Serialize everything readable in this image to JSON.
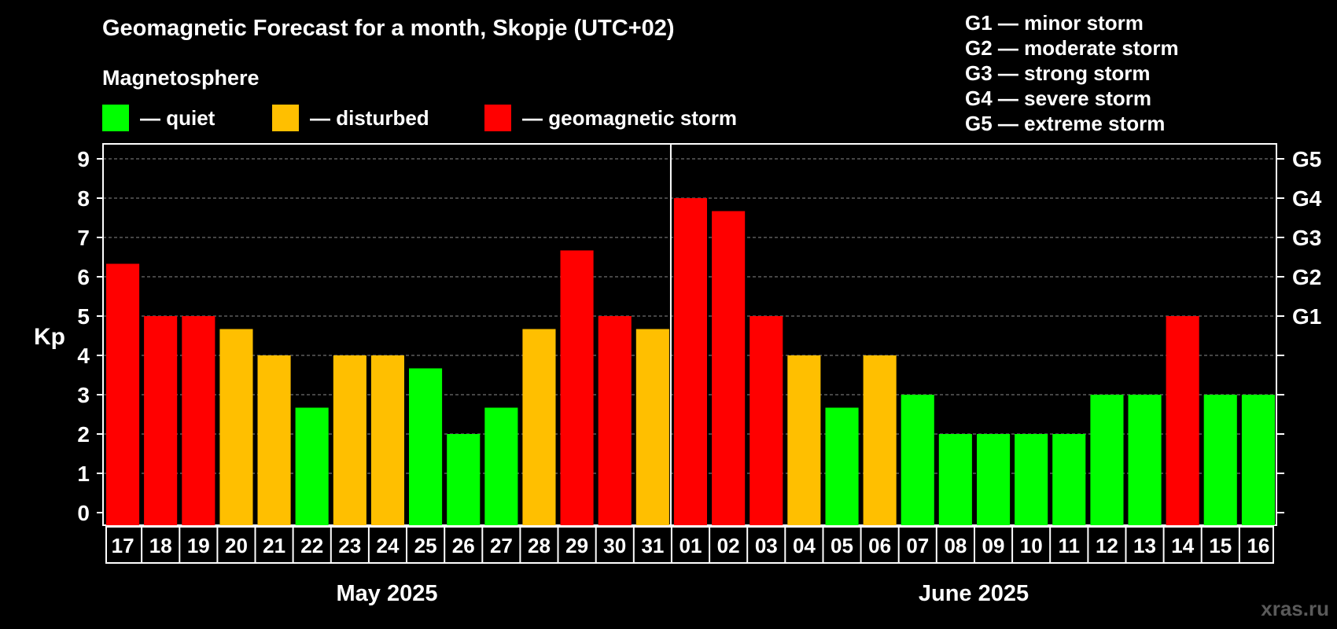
{
  "chart_data": {
    "type": "bar",
    "title": "Geomagnetic Forecast for a month, Skopje (UTC+02)",
    "subtitle": "Magnetosphere",
    "ylabel": "Kp",
    "ylim": [
      0,
      9
    ],
    "yticks": [
      "0",
      "1",
      "2",
      "3",
      "4",
      "5",
      "6",
      "7",
      "8",
      "9"
    ],
    "right_axis": [
      {
        "value": 5,
        "label": "G1"
      },
      {
        "value": 6,
        "label": "G2"
      },
      {
        "value": 7,
        "label": "G3"
      },
      {
        "value": 8,
        "label": "G4"
      },
      {
        "value": 9,
        "label": "G5"
      }
    ],
    "status_legend": [
      {
        "label": "— quiet",
        "color": "#00ff00"
      },
      {
        "label": "— disturbed",
        "color": "#ffbf00"
      },
      {
        "label": "— geomagnetic storm",
        "color": "#ff0000"
      }
    ],
    "storm_scale": [
      "G1 — minor storm",
      "G2 — moderate storm",
      "G3 — strong storm",
      "G4 — severe storm",
      "G5 — extreme storm"
    ],
    "months": [
      {
        "label": "May 2025",
        "start": 0,
        "end": 14
      },
      {
        "label": "June 2025",
        "start": 15,
        "end": 30
      }
    ],
    "categories": [
      "17",
      "18",
      "19",
      "20",
      "21",
      "22",
      "23",
      "24",
      "25",
      "26",
      "27",
      "28",
      "29",
      "30",
      "31",
      "01",
      "02",
      "03",
      "04",
      "05",
      "06",
      "07",
      "08",
      "09",
      "10",
      "11",
      "12",
      "13",
      "14",
      "15",
      "16"
    ],
    "values": [
      6.33,
      5,
      5,
      4.67,
      4,
      2.67,
      4,
      4,
      3.67,
      2,
      2.67,
      4.67,
      6.67,
      5,
      4.67,
      8,
      7.67,
      5,
      4,
      2.67,
      4,
      3,
      2,
      2,
      2,
      2,
      3,
      3,
      5,
      3,
      3
    ],
    "status": [
      "storm",
      "storm",
      "storm",
      "disturbed",
      "disturbed",
      "quiet",
      "disturbed",
      "disturbed",
      "quiet",
      "quiet",
      "quiet",
      "disturbed",
      "storm",
      "storm",
      "disturbed",
      "storm",
      "storm",
      "storm",
      "disturbed",
      "quiet",
      "disturbed",
      "quiet",
      "quiet",
      "quiet",
      "quiet",
      "quiet",
      "quiet",
      "quiet",
      "storm",
      "quiet",
      "quiet"
    ],
    "colors": {
      "quiet": "#00ff00",
      "disturbed": "#ffbf00",
      "storm": "#ff0000"
    }
  },
  "watermark": "xras.ru"
}
